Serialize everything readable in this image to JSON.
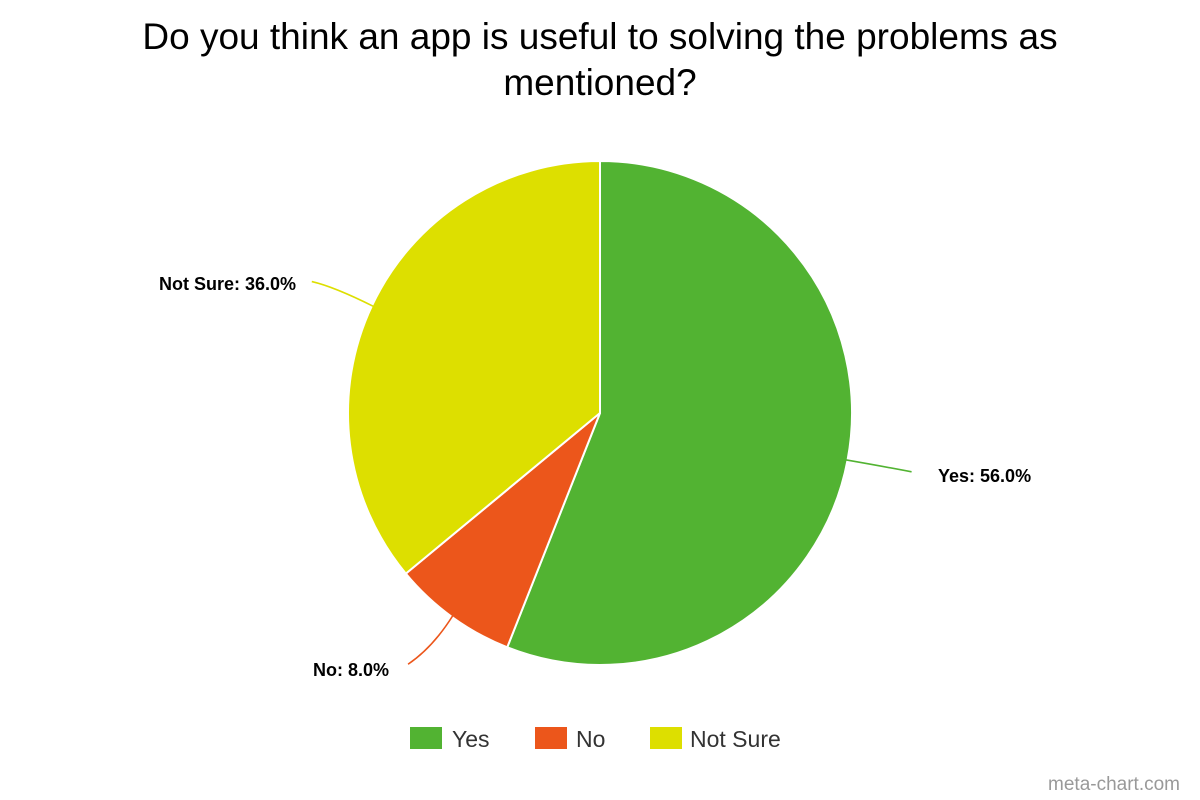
{
  "chart_data": {
    "type": "pie",
    "title": "Do you think an app is useful to solving the problems as mentioned?",
    "title_lines": [
      "Do you think an app is useful to solving the problems as",
      "mentioned?"
    ],
    "slices": [
      {
        "name": "Yes",
        "value": 56.0,
        "label": "Yes: 56.0%",
        "color": "#52b332"
      },
      {
        "name": "No",
        "value": 8.0,
        "label": "No: 8.0%",
        "color": "#ec561b"
      },
      {
        "name": "Not Sure",
        "value": 36.0,
        "label": "Not Sure: 36.0%",
        "color": "#dddf00"
      }
    ],
    "legend": {
      "placement": "bottom-center",
      "items": [
        "Yes",
        "No",
        "Not Sure"
      ]
    }
  },
  "watermark": "meta-chart.com"
}
